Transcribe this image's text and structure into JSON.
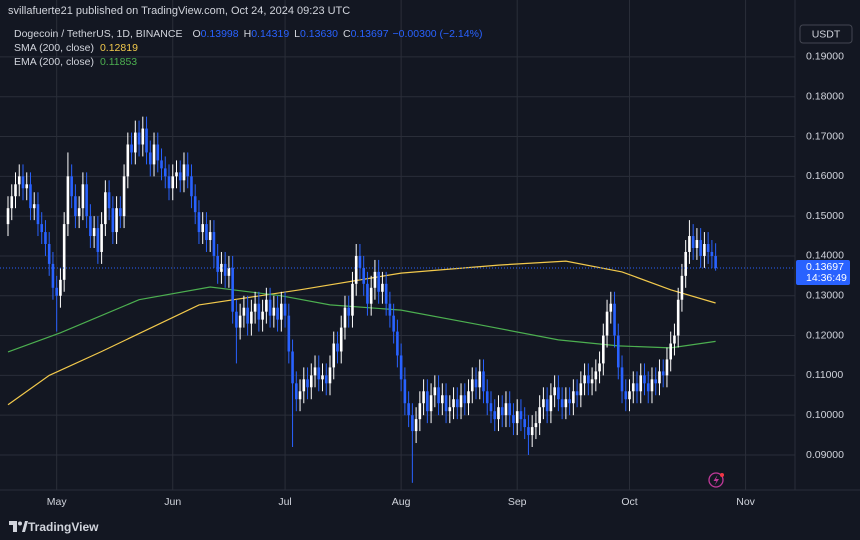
{
  "header": {
    "attribution": "svillafuerte21 published on TradingView.com, Oct 24, 2024 09:23 UTC"
  },
  "chart_data": {
    "type": "candlestick",
    "title": "Dogecoin / TetherUS, 1D, BINANCE",
    "ohlc_legend": [
      {
        "label": "O",
        "value": "0.13998"
      },
      {
        "label": "H",
        "value": "0.14319"
      },
      {
        "label": "L",
        "value": "0.13630"
      },
      {
        "label": "C",
        "value": "0.13697"
      }
    ],
    "change": "−0.00300 (−2.14%)",
    "currency": "USDT",
    "countdown": "14:36:49",
    "up_color": "#ffffff",
    "down_color": "#2962ff",
    "open": [
      0.148,
      0.152,
      0.155,
      0.158,
      0.16,
      0.157,
      0.158,
      0.152,
      0.153,
      0.148,
      0.146,
      0.143,
      0.138,
      0.132,
      0.13,
      0.134,
      0.148,
      0.16,
      0.155,
      0.15,
      0.152,
      0.158,
      0.15,
      0.145,
      0.147,
      0.141,
      0.148,
      0.156,
      0.152,
      0.146,
      0.152,
      0.15,
      0.16,
      0.168,
      0.166,
      0.171,
      0.168,
      0.172,
      0.166,
      0.163,
      0.168,
      0.164,
      0.162,
      0.16,
      0.157,
      0.16,
      0.161,
      0.159,
      0.163,
      0.16,
      0.155,
      0.151,
      0.146,
      0.148,
      0.144,
      0.146,
      0.14,
      0.136,
      0.138,
      0.135,
      0.137,
      0.126,
      0.122,
      0.125,
      0.127,
      0.123,
      0.126,
      0.128,
      0.124,
      0.126,
      0.129,
      0.125,
      0.127,
      0.124,
      0.128,
      0.125,
      0.116,
      0.108,
      0.104,
      0.106,
      0.109,
      0.107,
      0.11,
      0.112,
      0.109,
      0.11,
      0.108,
      0.112,
      0.118,
      0.116,
      0.122,
      0.127,
      0.125,
      0.133,
      0.14,
      0.137,
      0.133,
      0.128,
      0.132,
      0.136,
      0.131,
      0.133,
      0.128,
      0.125,
      0.121,
      0.115,
      0.109,
      0.103,
      0.1,
      0.096,
      0.099,
      0.103,
      0.106,
      0.101,
      0.105,
      0.107,
      0.103,
      0.105,
      0.101,
      0.102,
      0.104,
      0.102,
      0.105,
      0.103,
      0.106,
      0.109,
      0.107,
      0.111,
      0.106,
      0.103,
      0.101,
      0.099,
      0.102,
      0.1,
      0.103,
      0.1,
      0.098,
      0.101,
      0.099,
      0.097,
      0.095,
      0.097,
      0.098,
      0.102,
      0.104,
      0.101,
      0.105,
      0.107,
      0.104,
      0.102,
      0.104,
      0.103,
      0.106,
      0.105,
      0.108,
      0.11,
      0.108,
      0.109,
      0.111,
      0.113,
      0.12,
      0.126,
      0.128,
      0.12,
      0.112,
      0.106,
      0.104,
      0.106,
      0.108,
      0.106,
      0.11,
      0.108,
      0.106,
      0.109,
      0.108,
      0.111,
      0.11,
      0.114,
      0.118,
      0.12,
      0.129,
      0.135,
      0.141,
      0.145,
      0.142,
      0.144,
      0.14,
      0.143,
      0.141,
      0.13998
    ],
    "high": [
      0.155,
      0.158,
      0.161,
      0.163,
      0.163,
      0.161,
      0.161,
      0.156,
      0.156,
      0.151,
      0.149,
      0.146,
      0.141,
      0.135,
      0.137,
      0.151,
      0.166,
      0.163,
      0.158,
      0.155,
      0.161,
      0.161,
      0.153,
      0.15,
      0.15,
      0.151,
      0.159,
      0.159,
      0.155,
      0.155,
      0.155,
      0.163,
      0.171,
      0.171,
      0.174,
      0.174,
      0.175,
      0.175,
      0.169,
      0.171,
      0.171,
      0.167,
      0.165,
      0.163,
      0.163,
      0.164,
      0.164,
      0.166,
      0.166,
      0.163,
      0.158,
      0.154,
      0.151,
      0.151,
      0.149,
      0.149,
      0.143,
      0.141,
      0.141,
      0.14,
      0.14,
      0.129,
      0.128,
      0.13,
      0.13,
      0.129,
      0.131,
      0.131,
      0.129,
      0.132,
      0.132,
      0.13,
      0.13,
      0.131,
      0.131,
      0.128,
      0.119,
      0.111,
      0.109,
      0.112,
      0.112,
      0.113,
      0.115,
      0.115,
      0.113,
      0.113,
      0.115,
      0.121,
      0.121,
      0.125,
      0.13,
      0.13,
      0.136,
      0.143,
      0.143,
      0.14,
      0.136,
      0.135,
      0.139,
      0.139,
      0.136,
      0.136,
      0.131,
      0.128,
      0.124,
      0.118,
      0.112,
      0.106,
      0.103,
      0.102,
      0.106,
      0.109,
      0.109,
      0.108,
      0.11,
      0.11,
      0.108,
      0.108,
      0.105,
      0.107,
      0.107,
      0.108,
      0.108,
      0.109,
      0.112,
      0.112,
      0.114,
      0.114,
      0.109,
      0.106,
      0.104,
      0.105,
      0.105,
      0.106,
      0.106,
      0.103,
      0.104,
      0.104,
      0.102,
      0.1,
      0.1,
      0.101,
      0.105,
      0.107,
      0.107,
      0.108,
      0.11,
      0.11,
      0.107,
      0.107,
      0.107,
      0.109,
      0.109,
      0.111,
      0.113,
      0.113,
      0.112,
      0.114,
      0.116,
      0.123,
      0.129,
      0.131,
      0.131,
      0.123,
      0.115,
      0.109,
      0.109,
      0.111,
      0.111,
      0.113,
      0.113,
      0.111,
      0.112,
      0.112,
      0.114,
      0.114,
      0.117,
      0.121,
      0.123,
      0.132,
      0.138,
      0.144,
      0.149,
      0.148,
      0.147,
      0.147,
      0.146,
      0.146,
      0.144,
      0.14319
    ],
    "low": [
      0.145,
      0.149,
      0.152,
      0.155,
      0.154,
      0.154,
      0.149,
      0.149,
      0.145,
      0.143,
      0.14,
      0.135,
      0.129,
      0.121,
      0.127,
      0.131,
      0.145,
      0.152,
      0.147,
      0.147,
      0.149,
      0.147,
      0.142,
      0.142,
      0.138,
      0.138,
      0.145,
      0.149,
      0.143,
      0.143,
      0.147,
      0.147,
      0.157,
      0.163,
      0.163,
      0.165,
      0.165,
      0.163,
      0.16,
      0.16,
      0.161,
      0.159,
      0.157,
      0.154,
      0.154,
      0.157,
      0.156,
      0.156,
      0.157,
      0.152,
      0.148,
      0.143,
      0.143,
      0.141,
      0.141,
      0.137,
      0.133,
      0.133,
      0.132,
      0.132,
      0.123,
      0.113,
      0.119,
      0.122,
      0.12,
      0.12,
      0.123,
      0.121,
      0.121,
      0.123,
      0.122,
      0.122,
      0.121,
      0.121,
      0.122,
      0.113,
      0.092,
      0.101,
      0.101,
      0.103,
      0.104,
      0.104,
      0.107,
      0.106,
      0.106,
      0.105,
      0.105,
      0.109,
      0.113,
      0.113,
      0.119,
      0.122,
      0.122,
      0.13,
      0.134,
      0.13,
      0.125,
      0.125,
      0.129,
      0.128,
      0.128,
      0.125,
      0.122,
      0.118,
      0.112,
      0.106,
      0.1,
      0.097,
      0.083,
      0.093,
      0.096,
      0.1,
      0.098,
      0.098,
      0.102,
      0.1,
      0.1,
      0.098,
      0.098,
      0.099,
      0.099,
      0.099,
      0.1,
      0.1,
      0.103,
      0.104,
      0.104,
      0.103,
      0.1,
      0.098,
      0.096,
      0.096,
      0.097,
      0.097,
      0.097,
      0.095,
      0.095,
      0.096,
      0.094,
      0.09,
      0.092,
      0.094,
      0.095,
      0.099,
      0.098,
      0.098,
      0.102,
      0.101,
      0.099,
      0.099,
      0.1,
      0.1,
      0.102,
      0.102,
      0.105,
      0.105,
      0.105,
      0.106,
      0.108,
      0.11,
      0.117,
      0.123,
      0.117,
      0.109,
      0.103,
      0.101,
      0.101,
      0.103,
      0.103,
      0.103,
      0.105,
      0.103,
      0.103,
      0.105,
      0.105,
      0.107,
      0.107,
      0.111,
      0.115,
      0.117,
      0.126,
      0.132,
      0.138,
      0.139,
      0.139,
      0.137,
      0.137,
      0.138,
      0.137,
      0.1363
    ],
    "close": [
      0.152,
      0.155,
      0.158,
      0.16,
      0.157,
      0.158,
      0.152,
      0.153,
      0.148,
      0.146,
      0.143,
      0.138,
      0.132,
      0.13,
      0.134,
      0.148,
      0.16,
      0.155,
      0.15,
      0.152,
      0.158,
      0.15,
      0.145,
      0.147,
      0.141,
      0.148,
      0.156,
      0.152,
      0.146,
      0.152,
      0.15,
      0.16,
      0.168,
      0.166,
      0.171,
      0.168,
      0.172,
      0.166,
      0.163,
      0.168,
      0.164,
      0.162,
      0.16,
      0.157,
      0.16,
      0.161,
      0.159,
      0.163,
      0.16,
      0.155,
      0.151,
      0.146,
      0.148,
      0.144,
      0.146,
      0.14,
      0.136,
      0.138,
      0.135,
      0.137,
      0.126,
      0.122,
      0.125,
      0.127,
      0.123,
      0.126,
      0.128,
      0.124,
      0.126,
      0.129,
      0.125,
      0.127,
      0.124,
      0.128,
      0.125,
      0.116,
      0.108,
      0.104,
      0.106,
      0.109,
      0.107,
      0.11,
      0.112,
      0.109,
      0.11,
      0.108,
      0.112,
      0.118,
      0.116,
      0.122,
      0.127,
      0.125,
      0.133,
      0.14,
      0.137,
      0.133,
      0.128,
      0.132,
      0.136,
      0.131,
      0.133,
      0.128,
      0.125,
      0.121,
      0.115,
      0.109,
      0.103,
      0.1,
      0.096,
      0.099,
      0.103,
      0.106,
      0.101,
      0.105,
      0.107,
      0.103,
      0.105,
      0.101,
      0.102,
      0.104,
      0.102,
      0.105,
      0.103,
      0.106,
      0.109,
      0.107,
      0.111,
      0.106,
      0.103,
      0.101,
      0.099,
      0.102,
      0.1,
      0.103,
      0.1,
      0.098,
      0.101,
      0.099,
      0.097,
      0.095,
      0.097,
      0.098,
      0.102,
      0.104,
      0.101,
      0.105,
      0.107,
      0.104,
      0.102,
      0.104,
      0.103,
      0.106,
      0.105,
      0.108,
      0.11,
      0.108,
      0.109,
      0.111,
      0.113,
      0.12,
      0.126,
      0.128,
      0.12,
      0.112,
      0.106,
      0.104,
      0.106,
      0.108,
      0.106,
      0.11,
      0.108,
      0.106,
      0.109,
      0.108,
      0.111,
      0.11,
      0.114,
      0.118,
      0.12,
      0.129,
      0.135,
      0.141,
      0.145,
      0.142,
      0.144,
      0.14,
      0.143,
      0.141,
      0.13998,
      0.13697
    ],
    "series": [
      {
        "name": "SMA (200, close)",
        "color": "#f2c94c",
        "x": [
          0,
          11,
          25,
          51,
          78,
          105,
          131,
          149,
          164,
          177,
          189
        ],
        "values": [
          0.1026,
          0.11,
          0.116,
          0.1277,
          0.1315,
          0.1357,
          0.1377,
          0.1387,
          0.136,
          0.1315,
          0.12819
        ]
      },
      {
        "name": "EMA (200, close)",
        "color": "#4caf50",
        "x": [
          0,
          14,
          35,
          54,
          73,
          86,
          105,
          126,
          147,
          163,
          177,
          189
        ],
        "values": [
          0.1159,
          0.1207,
          0.129,
          0.1322,
          0.13,
          0.1277,
          0.1264,
          0.1227,
          0.1189,
          0.1174,
          0.1169,
          0.11853
        ]
      }
    ],
    "xlim": [
      -2.14,
      210.2
    ],
    "xticks": [
      {
        "value": 13,
        "label": "May"
      },
      {
        "value": 44,
        "label": "Jun"
      },
      {
        "value": 74,
        "label": "Jul"
      },
      {
        "value": 105,
        "label": "Aug"
      },
      {
        "value": 136,
        "label": "Sep"
      },
      {
        "value": 166,
        "label": "Oct"
      },
      {
        "value": 197,
        "label": "Nov"
      }
    ],
    "ylim": [
      0.0812,
      0.2043
    ],
    "yticks": [
      {
        "value": 0.09,
        "label": "0.09000"
      },
      {
        "value": 0.1,
        "label": "0.10000"
      },
      {
        "value": 0.11,
        "label": "0.11000"
      },
      {
        "value": 0.12,
        "label": "0.12000"
      },
      {
        "value": 0.13,
        "label": "0.13000"
      },
      {
        "value": 0.14,
        "label": "0.14000"
      },
      {
        "value": 0.15,
        "label": "0.15000"
      },
      {
        "value": 0.16,
        "label": "0.16000"
      },
      {
        "value": 0.17,
        "label": "0.17000"
      },
      {
        "value": 0.18,
        "label": "0.18000"
      },
      {
        "value": 0.19,
        "label": "0.19000"
      }
    ],
    "grid": true
  },
  "footer": {
    "brand": "TradingView"
  }
}
